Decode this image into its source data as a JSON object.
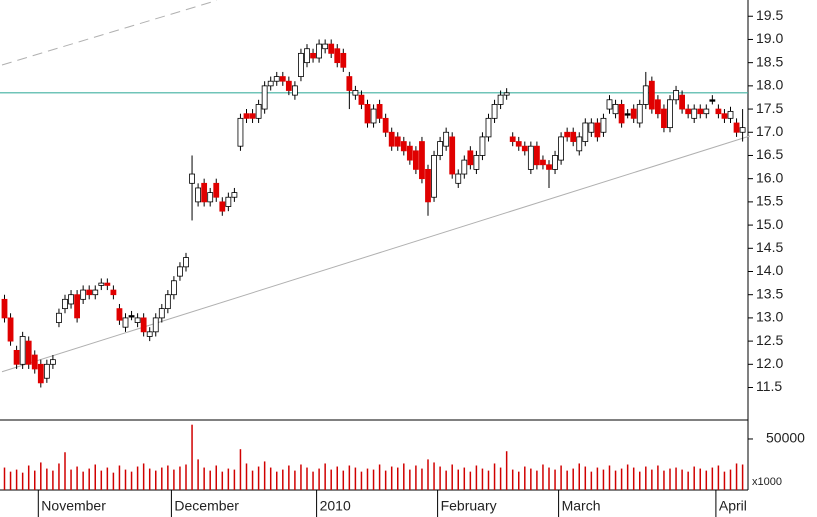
{
  "chart_data": {
    "type": "candlestick",
    "categories": [
      null,
      null,
      null,
      null,
      null,
      null,
      "November",
      null,
      null,
      null,
      null,
      null,
      null,
      null,
      null,
      null,
      null,
      null,
      null,
      null,
      null,
      null,
      null,
      null,
      null,
      null,
      null,
      null,
      "December",
      null,
      null,
      null,
      null,
      null,
      null,
      null,
      null,
      null,
      null,
      null,
      null,
      null,
      null,
      null,
      null,
      null,
      null,
      null,
      null,
      null,
      null,
      null,
      "2010",
      null,
      null,
      null,
      null,
      null,
      null,
      null,
      null,
      null,
      null,
      null,
      null,
      null,
      null,
      null,
      null,
      null,
      null,
      null,
      "February",
      null,
      null,
      null,
      null,
      null,
      null,
      null,
      null,
      null,
      null,
      null,
      null,
      null,
      null,
      null,
      null,
      null,
      null,
      null,
      "March",
      null,
      null,
      null,
      null,
      null,
      null,
      null,
      null,
      null,
      null,
      null,
      null,
      null,
      null,
      null,
      null,
      null,
      null,
      null,
      null,
      null,
      null,
      null,
      null,
      null,
      "April",
      null,
      null,
      null,
      null
    ],
    "open": [
      13.4,
      13.0,
      12.3,
      12.0,
      12.5,
      12.2,
      12.0,
      11.7,
      12.0,
      12.9,
      13.2,
      13.3,
      13.5,
      13.4,
      13.6,
      13.5,
      13.7,
      13.75,
      13.6,
      13.2,
      12.8,
      13.05,
      12.9,
      13.0,
      12.6,
      12.7,
      13.0,
      13.2,
      13.5,
      13.9,
      14.1,
      15.9,
      15.5,
      15.9,
      15.5,
      15.9,
      15.5,
      15.4,
      15.6,
      16.7,
      17.4,
      17.4,
      17.3,
      17.5,
      18.0,
      18.1,
      18.2,
      18.1,
      17.8,
      18.2,
      18.5,
      18.7,
      18.6,
      18.8,
      18.9,
      18.8,
      18.7,
      18.2,
      17.8,
      17.8,
      17.6,
      17.2,
      17.6,
      17.3,
      17.0,
      16.9,
      16.8,
      16.7,
      16.6,
      16.8,
      16.2,
      15.6,
      16.5,
      16.7,
      16.9,
      15.9,
      16.1,
      16.6,
      16.2,
      16.5,
      16.9,
      17.3,
      17.6,
      17.8,
      16.9,
      16.8,
      16.7,
      16.2,
      16.7,
      16.4,
      16.3,
      16.2,
      16.4,
      17.0,
      17.0,
      16.6,
      16.8,
      17.0,
      17.2,
      17.0,
      17.5,
      17.4,
      17.6,
      17.4,
      17.5,
      17.2,
      17.6,
      18.1,
      17.7,
      17.5,
      17.1,
      17.7,
      17.8,
      17.5,
      17.3,
      17.5,
      17.4,
      17.7,
      17.5,
      17.4,
      17.3,
      17.2,
      17.0
    ],
    "high": [
      13.5,
      13.1,
      12.4,
      12.7,
      12.6,
      12.3,
      12.1,
      12.1,
      12.2,
      13.2,
      13.5,
      13.6,
      13.6,
      13.7,
      13.7,
      13.7,
      13.85,
      13.85,
      13.7,
      13.3,
      13.1,
      13.15,
      13.1,
      13.1,
      12.8,
      13.1,
      13.3,
      13.6,
      13.9,
      14.2,
      14.4,
      16.5,
      15.9,
      16.0,
      15.8,
      16.0,
      15.6,
      15.7,
      15.8,
      17.4,
      17.5,
      17.5,
      17.7,
      18.1,
      18.2,
      18.3,
      18.3,
      18.2,
      18.1,
      18.8,
      18.9,
      18.8,
      19.0,
      19.0,
      19.0,
      18.9,
      18.8,
      18.3,
      18.0,
      17.9,
      17.7,
      17.6,
      17.7,
      17.4,
      17.1,
      17.0,
      16.9,
      16.8,
      16.7,
      16.9,
      16.3,
      16.6,
      16.9,
      17.1,
      17.0,
      16.2,
      16.5,
      16.7,
      16.6,
      17.0,
      17.4,
      17.7,
      17.9,
      17.95,
      17.0,
      16.9,
      16.8,
      16.8,
      16.8,
      16.5,
      16.4,
      16.6,
      17.0,
      17.1,
      17.1,
      17.0,
      17.3,
      17.3,
      17.3,
      17.4,
      17.8,
      17.7,
      17.7,
      17.5,
      17.6,
      17.7,
      18.3,
      18.2,
      17.8,
      17.6,
      17.8,
      18.0,
      17.9,
      17.6,
      17.6,
      17.6,
      17.6,
      17.8,
      17.6,
      17.5,
      17.55,
      17.3,
      17.5
    ],
    "low": [
      12.9,
      12.4,
      11.9,
      11.9,
      11.9,
      11.8,
      11.5,
      11.6,
      11.9,
      12.8,
      13.1,
      13.2,
      12.9,
      13.3,
      13.4,
      13.4,
      13.6,
      13.6,
      13.4,
      12.85,
      12.7,
      12.95,
      12.8,
      12.6,
      12.5,
      12.6,
      12.9,
      13.1,
      13.4,
      13.8,
      14.0,
      15.1,
      15.4,
      15.4,
      15.4,
      15.5,
      15.2,
      15.3,
      15.5,
      16.6,
      17.2,
      17.2,
      17.2,
      17.4,
      17.9,
      18.0,
      18.0,
      17.8,
      17.7,
      18.1,
      18.4,
      18.5,
      18.5,
      18.7,
      18.6,
      18.4,
      18.3,
      17.5,
      17.7,
      17.5,
      17.1,
      17.1,
      17.2,
      16.9,
      16.6,
      16.6,
      16.5,
      16.3,
      16.1,
      15.9,
      15.2,
      15.5,
      16.4,
      16.6,
      16.0,
      15.8,
      16.0,
      16.2,
      16.1,
      16.4,
      16.8,
      17.2,
      17.5,
      17.7,
      16.7,
      16.6,
      16.5,
      16.1,
      16.2,
      16.2,
      15.8,
      16.1,
      16.3,
      16.8,
      16.7,
      16.5,
      16.7,
      16.9,
      16.8,
      16.9,
      17.4,
      17.3,
      17.1,
      17.3,
      17.2,
      17.1,
      17.5,
      17.4,
      17.3,
      17.0,
      17.0,
      17.6,
      17.4,
      17.3,
      17.2,
      17.3,
      17.3,
      17.6,
      17.3,
      17.2,
      17.2,
      16.9,
      16.8
    ],
    "close": [
      13.0,
      12.5,
      12.0,
      12.6,
      12.0,
      11.9,
      11.6,
      12.0,
      12.1,
      13.1,
      13.4,
      13.5,
      13.0,
      13.6,
      13.5,
      13.6,
      13.75,
      13.7,
      13.5,
      12.95,
      13.0,
      13.05,
      13.0,
      12.7,
      12.7,
      13.0,
      13.2,
      13.5,
      13.8,
      14.1,
      14.3,
      16.1,
      15.8,
      15.5,
      15.7,
      15.6,
      15.3,
      15.6,
      15.7,
      17.3,
      17.3,
      17.3,
      17.6,
      18.0,
      18.1,
      18.2,
      18.1,
      17.9,
      18.0,
      18.7,
      18.8,
      18.6,
      18.9,
      18.9,
      18.7,
      18.5,
      18.4,
      17.9,
      17.9,
      17.6,
      17.2,
      17.5,
      17.3,
      17.0,
      16.7,
      16.7,
      16.6,
      16.4,
      16.2,
      16.0,
      15.5,
      16.5,
      16.8,
      17.0,
      16.1,
      16.1,
      16.4,
      16.3,
      16.5,
      16.9,
      17.3,
      17.6,
      17.8,
      17.85,
      16.8,
      16.7,
      16.6,
      16.7,
      16.3,
      16.3,
      16.2,
      16.5,
      16.9,
      16.9,
      16.8,
      16.9,
      17.2,
      17.2,
      16.9,
      17.3,
      17.7,
      17.6,
      17.2,
      17.4,
      17.3,
      17.6,
      18.0,
      17.5,
      17.4,
      17.1,
      17.7,
      17.9,
      17.5,
      17.4,
      17.5,
      17.4,
      17.5,
      17.7,
      17.4,
      17.3,
      17.45,
      17.0,
      17.1
    ],
    "up_color": "#ffffff",
    "down_color": "#e00000",
    "doji_color": "#000000",
    "ylim": [
      10.8,
      19.85
    ],
    "yticks": [
      11.5,
      {
        "value": 12,
        "label": "12.0"
      },
      12.5,
      {
        "value": 13,
        "label": "13.0"
      },
      13.5,
      {
        "value": 14,
        "label": "14.0"
      },
      14.5,
      {
        "value": 15,
        "label": "15.0"
      },
      15.5,
      {
        "value": 16,
        "label": "16.0"
      },
      16.5,
      {
        "value": 17,
        "label": "17.0"
      },
      17.5,
      {
        "value": 18,
        "label": "18.0"
      },
      18.5,
      {
        "value": 19,
        "label": "19.0"
      },
      19.5
    ],
    "reference_lines": [
      {
        "value": 17.85,
        "color": "#40b0a0"
      }
    ],
    "trend_lines": [
      {
        "from": [
          0,
          11.84
        ],
        "to": [
          123.6,
          16.92
        ],
        "color": "#b0b0b0",
        "dashed": false
      },
      {
        "from": [
          0,
          18.45
        ],
        "to": [
          35.5,
          19.84
        ],
        "color": "#b0b0b0",
        "dashed": true
      }
    ],
    "volume": {
      "values": [
        22000,
        18000,
        20000,
        17000,
        24000,
        19000,
        27000,
        21000,
        19000,
        26000,
        37000,
        20000,
        23000,
        18000,
        21000,
        25000,
        19000,
        22000,
        17000,
        24000,
        20000,
        18000,
        23000,
        26000,
        21000,
        19000,
        22000,
        24000,
        20000,
        23000,
        25000,
        64000,
        30000,
        22000,
        19000,
        24000,
        18000,
        21000,
        20000,
        40000,
        26000,
        19000,
        23000,
        28000,
        22000,
        18000,
        20000,
        24000,
        19000,
        25000,
        22000,
        18000,
        21000,
        26000,
        20000,
        23000,
        19000,
        24000,
        22000,
        18000,
        21000,
        20000,
        25000,
        19000,
        23000,
        22000,
        26000,
        20000,
        24000,
        21000,
        30000,
        27000,
        23000,
        19000,
        25000,
        20000,
        22000,
        18000,
        24000,
        21000,
        19000,
        26000,
        22000,
        38000,
        20000,
        18000,
        23000,
        21000,
        19000,
        25000,
        22000,
        20000,
        24000,
        19000,
        21000,
        26000,
        23000,
        18000,
        22000,
        20000,
        24000,
        19000,
        21000,
        25000,
        22000,
        18000,
        23000,
        20000,
        24000,
        19000,
        21000,
        22000,
        20000,
        18000,
        23000,
        21000,
        19000,
        22000,
        24000,
        18000,
        20000,
        26000,
        25000
      ],
      "color": "#d00000",
      "ylim": [
        0,
        68600
      ],
      "yticks": [
        50000
      ],
      "unit_label": "x1000"
    }
  }
}
